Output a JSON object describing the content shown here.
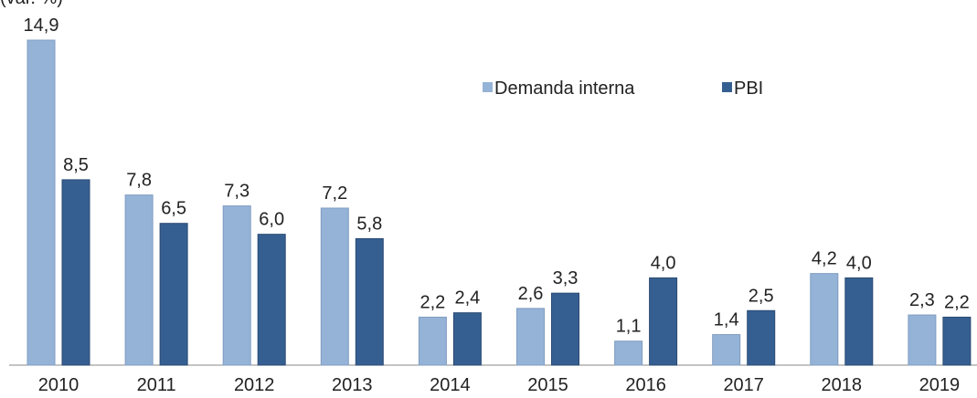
{
  "chart_data": {
    "type": "bar",
    "title": "(var. %)",
    "categories": [
      "2010",
      "2011",
      "2012",
      "2013",
      "2014",
      "2015",
      "2016",
      "2017",
      "2018",
      "2019"
    ],
    "series": [
      {
        "name": "Demanda interna",
        "color": "#95b3d7",
        "values": [
          14.9,
          7.8,
          7.3,
          7.2,
          2.2,
          2.6,
          1.1,
          1.4,
          4.2,
          2.3
        ],
        "value_labels": [
          "14,9",
          "7,8",
          "7,3",
          "7,2",
          "2,2",
          "2,6",
          "1,1",
          "1,4",
          "4,2",
          "2,3"
        ]
      },
      {
        "name": "PBI",
        "color": "#365f91",
        "values": [
          8.5,
          6.5,
          6.0,
          5.8,
          2.4,
          3.3,
          4.0,
          2.5,
          4.0,
          2.2
        ],
        "value_labels": [
          "8,5",
          "6,5",
          "6,0",
          "5,8",
          "2,4",
          "3,3",
          "4,0",
          "2,5",
          "4,0",
          "2,2"
        ]
      }
    ],
    "legend": "top-right"
  }
}
